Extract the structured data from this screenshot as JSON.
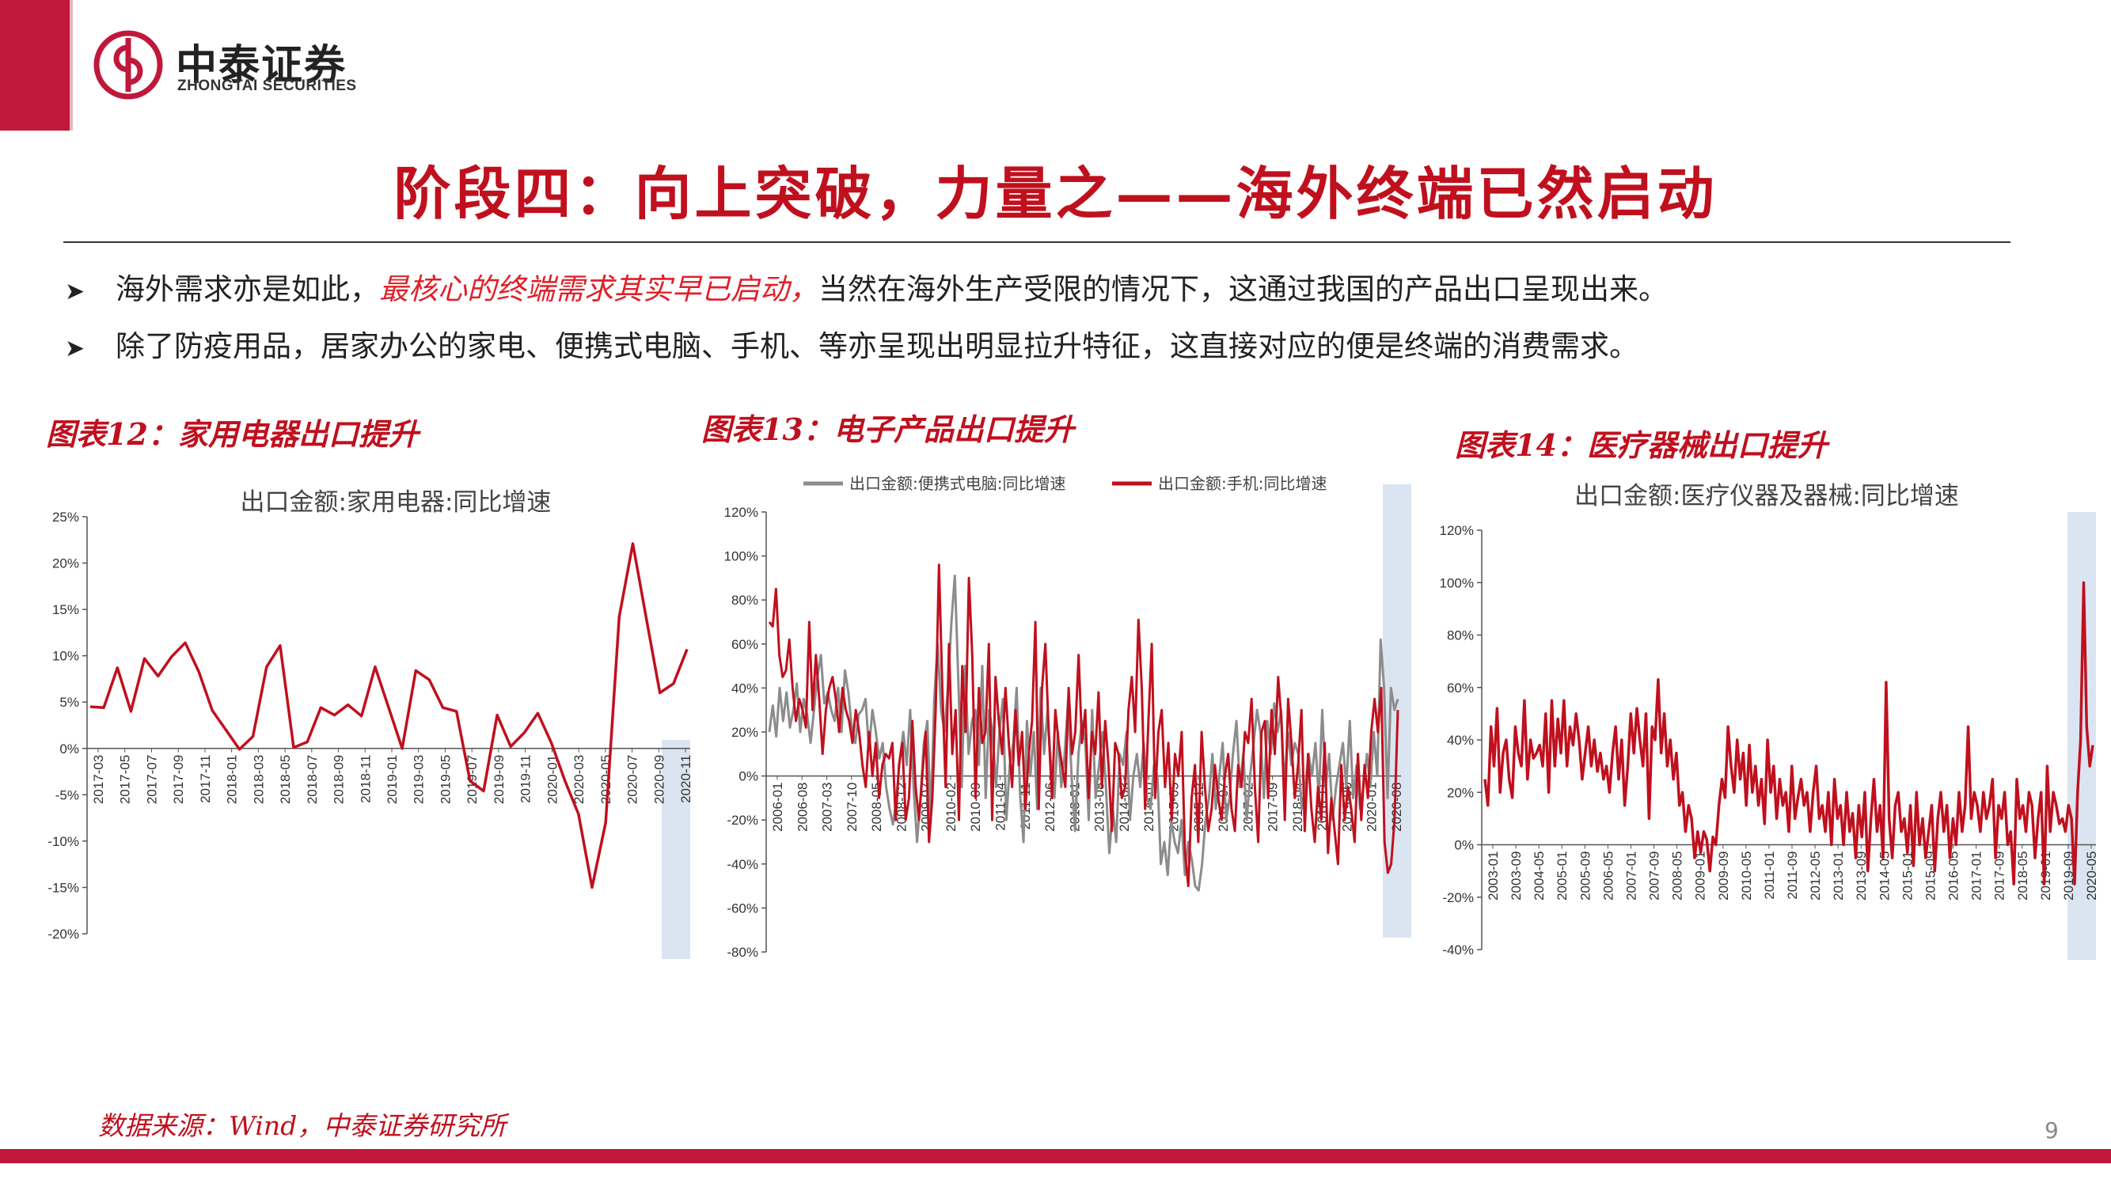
{
  "header": {
    "logo_cn": "中泰证券",
    "logo_en": "ZHONGTAI SECURITIES",
    "title": "阶段四：向上突破，力量之——海外终端已然启动"
  },
  "bullets": [
    {
      "pre": "海外需求亦是如此，",
      "highlight": "最核心的终端需求其实早已启动，",
      "post": "当然在海外生产受限的情况下，这通过我国的产品出口呈现出来。"
    },
    {
      "pre": "除了防疫用品，居家办公的家电、便携式电脑、手机、等亦呈现出明显拉升特征，这直接对应的便是终端的消费需求。",
      "highlight": "",
      "post": ""
    }
  ],
  "chart_labels": [
    "图表12：家用电器出口提升",
    "图表13：电子产品出口提升",
    "图表14：医疗器械出口提升"
  ],
  "footer": {
    "source": "数据来源：Wind，中泰证券研究所",
    "page": "9"
  },
  "colors": {
    "brand": "#c0183a",
    "series_red": "#c0101e",
    "series_grey": "#8c8c8c",
    "shade": "#dbe5f1"
  },
  "chart_data": [
    {
      "type": "line",
      "title": "出口金额:家用电器:同比增速",
      "ylim": [
        -20,
        25
      ],
      "yticks": [
        -20,
        -15,
        -10,
        -5,
        0,
        5,
        10,
        15,
        20,
        25
      ],
      "ytick_labels": [
        "-20%",
        "-15%",
        "-10%",
        "-5%",
        "0%",
        "5%",
        "10%",
        "15%",
        "20%",
        "25%"
      ],
      "x_tick_labels": [
        "2017-03",
        "2017-05",
        "2017-07",
        "2017-09",
        "2017-11",
        "2018-01",
        "2018-03",
        "2018-05",
        "2018-07",
        "2018-09",
        "2018-11",
        "2019-01",
        "2019-03",
        "2019-05",
        "2019-07",
        "2019-09",
        "2019-11",
        "2020-01",
        "2020-03",
        "2020-05",
        "2020-07",
        "2020-09",
        "2020-11"
      ],
      "shade_range": [
        "2020-09",
        "2020-11"
      ],
      "series": [
        {
          "name": "出口金额:家用电器:同比增速",
          "color": "#c0101e",
          "values": [
            4.5,
            4.4,
            8.7,
            4.0,
            9.7,
            7.8,
            9.9,
            11.4,
            8.3,
            4.1,
            2.0,
            -0.1,
            1.3,
            8.8,
            11.1,
            0.1,
            0.7,
            4.4,
            3.6,
            4.7,
            3.5,
            8.8,
            4.4,
            0.0,
            8.4,
            7.4,
            4.4,
            4.0,
            -3.5,
            -4.6,
            3.6,
            0.2,
            1.7,
            3.8,
            0.6,
            -3.5,
            -7.1,
            -15.0,
            -8.0,
            14.2,
            22.1,
            14.0,
            6.0,
            7.0,
            10.7
          ]
        }
      ]
    },
    {
      "type": "line",
      "title": "",
      "ylim": [
        -80,
        120
      ],
      "yticks": [
        -80,
        -60,
        -40,
        -20,
        0,
        20,
        40,
        60,
        80,
        100,
        120
      ],
      "ytick_labels": [
        "-80%",
        "-60%",
        "-40%",
        "-20%",
        "0%",
        "20%",
        "40%",
        "60%",
        "80%",
        "100%",
        "120%"
      ],
      "x_tick_labels": [
        "2006-01",
        "2006-08",
        "2007-03",
        "2007-10",
        "2008-05",
        "2008-12",
        "2009-07",
        "2010-02",
        "2010-09",
        "2011-04",
        "2011-11",
        "2012-06",
        "2013-01",
        "2013-08",
        "2014-03",
        "2014-10",
        "2015-05",
        "2015-12",
        "2016-07",
        "2017-02",
        "2017-09",
        "2018-04",
        "2018-11",
        "2019-06",
        "2020-01",
        "2020-08"
      ],
      "shade_range": [
        "2020-04",
        "2020-11"
      ],
      "series": [
        {
          "name": "出口金额:便携式电脑:同比增速",
          "color": "#8c8c8c",
          "values": [
            20,
            32,
            18,
            40,
            25,
            38,
            22,
            30,
            42,
            20,
            35,
            28,
            15,
            30,
            45,
            55,
            33,
            38,
            30,
            25,
            40,
            20,
            48,
            38,
            22,
            15,
            28,
            30,
            35,
            12,
            30,
            20,
            8,
            15,
            -5,
            -15,
            -22,
            -10,
            8,
            20,
            5,
            30,
            -5,
            -30,
            -10,
            15,
            25,
            -20,
            35,
            60,
            30,
            20,
            40,
            70,
            91,
            45,
            -5,
            50,
            10,
            25,
            30,
            5,
            50,
            -10,
            30,
            20,
            -5,
            20,
            35,
            -20,
            5,
            15,
            40,
            -8,
            -30,
            25,
            0,
            20,
            -15,
            40,
            10,
            30,
            5,
            -10,
            20,
            -5,
            10,
            35,
            0,
            -25,
            10,
            25,
            15,
            -20,
            30,
            -10,
            5,
            20,
            -5,
            -35,
            -15,
            -30,
            10,
            5,
            20,
            -20,
            0,
            10,
            -5,
            15,
            -10,
            -15,
            5,
            0,
            -40,
            -30,
            -45,
            -20,
            -30,
            -35,
            -20,
            -45,
            -30,
            -38,
            -50,
            -52,
            -40,
            -20,
            -10,
            10,
            -15,
            0,
            15,
            -20,
            -10,
            10,
            25,
            -5,
            10,
            -20,
            0,
            15,
            30,
            20,
            -10,
            25,
            10,
            33,
            20,
            30,
            -5,
            20,
            5,
            15,
            10,
            -15,
            -5,
            10,
            0,
            15,
            -10,
            30,
            -5,
            10,
            -20,
            -5,
            5,
            15,
            -5,
            25,
            -10,
            5,
            -15,
            -5,
            10,
            -5,
            20,
            0,
            62,
            40,
            -10,
            40,
            30,
            35
          ]
        },
        {
          "name": "出口金额:手机:同比增速",
          "color": "#c0101e",
          "values": [
            70,
            68,
            85,
            55,
            45,
            48,
            62,
            40,
            25,
            35,
            30,
            22,
            70,
            30,
            55,
            35,
            10,
            30,
            40,
            45,
            35,
            20,
            40,
            30,
            25,
            15,
            30,
            20,
            5,
            -5,
            20,
            0,
            15,
            -10,
            5,
            10,
            8,
            15,
            -20,
            5,
            15,
            -20,
            -10,
            25,
            -5,
            -20,
            0,
            20,
            -30,
            -10,
            30,
            96,
            40,
            -5,
            60,
            10,
            30,
            -20,
            50,
            20,
            90,
            55,
            -10,
            40,
            15,
            20,
            60,
            -20,
            45,
            25,
            10,
            40,
            15,
            -5,
            30,
            5,
            20,
            -15,
            10,
            25,
            70,
            -15,
            40,
            60,
            20,
            -10,
            30,
            15,
            5,
            -5,
            40,
            10,
            20,
            55,
            15,
            30,
            -10,
            20,
            10,
            38,
            -5,
            25,
            5,
            -25,
            15,
            10,
            -10,
            -5,
            30,
            45,
            20,
            71,
            40,
            -15,
            25,
            60,
            -10,
            20,
            30,
            -5,
            15,
            -20,
            10,
            0,
            20,
            -35,
            -50,
            -10,
            5,
            -30,
            20,
            -5,
            -25,
            -15,
            5,
            -10,
            -20,
            0,
            10,
            -15,
            -25,
            5,
            -5,
            20,
            15,
            35,
            -5,
            -30,
            20,
            25,
            -10,
            30,
            10,
            45,
            25,
            -20,
            35,
            15,
            -10,
            5,
            30,
            -25,
            10,
            -15,
            -30,
            -5,
            -20,
            15,
            -35,
            -10,
            -25,
            -40,
            5,
            -20,
            -5,
            -15,
            -30,
            10,
            -20,
            5,
            -10,
            20,
            35,
            20,
            40,
            -30,
            -44,
            -40,
            -20,
            30
          ]
        }
      ]
    },
    {
      "type": "line",
      "title": "出口金额:医疗仪器及器械:同比增速",
      "ylim": [
        -40,
        120
      ],
      "yticks": [
        -40,
        -20,
        0,
        20,
        40,
        60,
        80,
        100,
        120
      ],
      "ytick_labels": [
        "-40%",
        "-20%",
        "0%",
        "20%",
        "40%",
        "60%",
        "80%",
        "100%",
        "120%"
      ],
      "x_tick_labels": [
        "2003-01",
        "2003-09",
        "2004-05",
        "2005-01",
        "2005-09",
        "2006-05",
        "2007-01",
        "2007-09",
        "2008-05",
        "2009-01",
        "2009-09",
        "2010-05",
        "2011-01",
        "2011-09",
        "2012-05",
        "2013-01",
        "2013-09",
        "2014-05",
        "2015-01",
        "2015-09",
        "2016-05",
        "2017-01",
        "2017-09",
        "2018-05",
        "2019-01",
        "2019-09",
        "2020-05"
      ],
      "shade_range": [
        "2020-03",
        "2020-11"
      ],
      "series": [
        {
          "name": "出口金额:医疗仪器及器械:同比增速",
          "color": "#c0101e",
          "values": [
            25,
            15,
            45,
            30,
            52,
            20,
            35,
            40,
            25,
            18,
            45,
            35,
            30,
            55,
            25,
            40,
            33,
            35,
            38,
            30,
            50,
            20,
            55,
            30,
            48,
            35,
            55,
            30,
            45,
            38,
            50,
            40,
            25,
            35,
            45,
            30,
            40,
            28,
            35,
            25,
            30,
            20,
            35,
            45,
            25,
            40,
            15,
            30,
            50,
            35,
            52,
            40,
            30,
            50,
            10,
            45,
            40,
            63,
            35,
            50,
            30,
            40,
            25,
            35,
            15,
            20,
            5,
            15,
            10,
            -5,
            5,
            -3,
            5,
            2,
            -10,
            3,
            0,
            15,
            25,
            18,
            45,
            30,
            20,
            40,
            25,
            35,
            15,
            38,
            20,
            30,
            15,
            25,
            8,
            40,
            20,
            30,
            10,
            25,
            15,
            20,
            5,
            30,
            10,
            18,
            25,
            15,
            20,
            5,
            20,
            30,
            10,
            15,
            5,
            20,
            0,
            25,
            10,
            15,
            0,
            20,
            5,
            12,
            -5,
            15,
            3,
            20,
            -10,
            10,
            25,
            5,
            15,
            -5,
            62,
            10,
            -5,
            15,
            20,
            5,
            10,
            -3,
            15,
            -8,
            20,
            0,
            10,
            -5,
            5,
            15,
            -10,
            10,
            20,
            5,
            15,
            -5,
            10,
            0,
            20,
            5,
            15,
            45,
            10,
            20,
            15,
            5,
            20,
            10,
            15,
            25,
            -5,
            15,
            10,
            20,
            0,
            5,
            -15,
            25,
            10,
            15,
            5,
            20,
            15,
            -5,
            10,
            20,
            -15,
            30,
            5,
            20,
            15,
            8,
            10,
            5,
            15,
            10,
            -15,
            20,
            40,
            100,
            45,
            30,
            38
          ]
        }
      ]
    }
  ]
}
